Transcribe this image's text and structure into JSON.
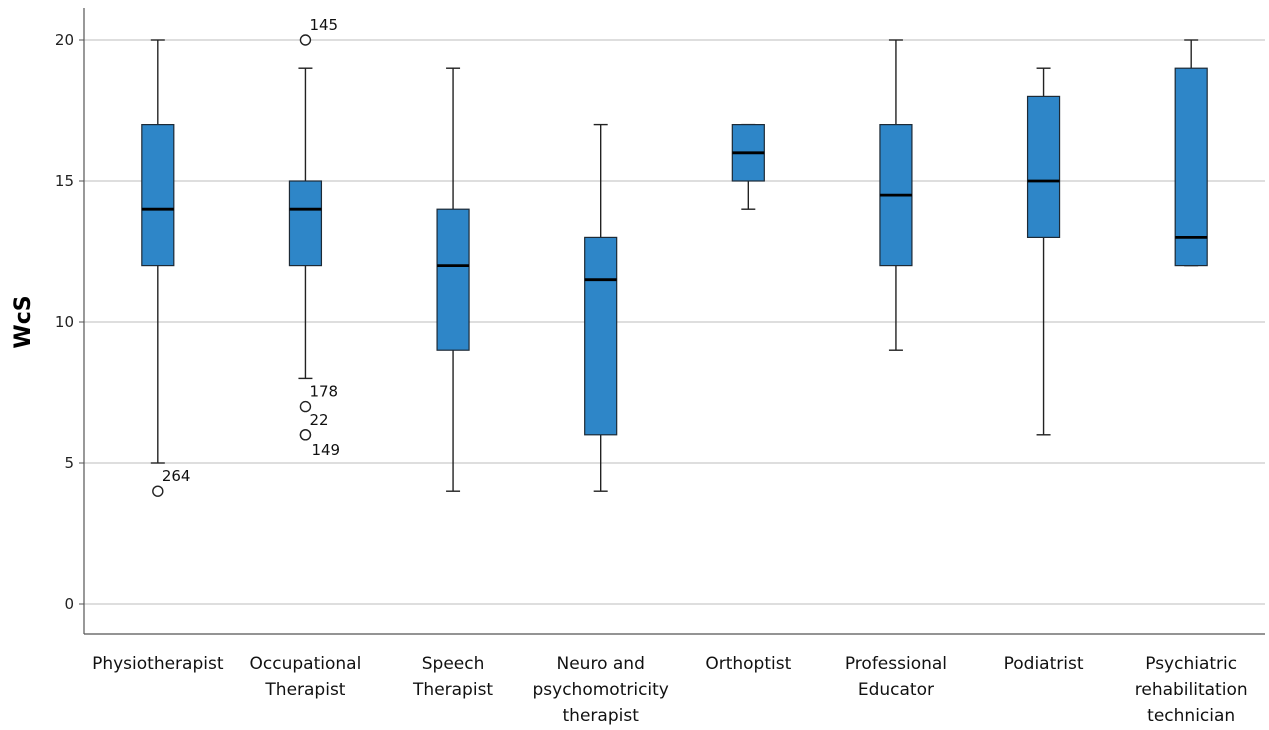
{
  "chart_data": {
    "type": "boxplot",
    "ylabel": "WcS",
    "xlabel": "",
    "ylim": [
      -1,
      21
    ],
    "yticks": [
      0,
      5,
      10,
      15,
      20
    ],
    "grid": true,
    "box_color": "#2E86C8",
    "categories": [
      {
        "lines": [
          "Physiotherapist"
        ],
        "whisker_low": 5,
        "q1": 12,
        "median": 14,
        "q3": 17,
        "whisker_high": 20,
        "outliers": [
          {
            "value": 4,
            "label": "264"
          }
        ]
      },
      {
        "lines": [
          "Occupational",
          "Therapist"
        ],
        "whisker_low": 8,
        "q1": 12,
        "median": 14,
        "q3": 15,
        "whisker_high": 19,
        "outliers": [
          {
            "value": 20,
            "label": "145"
          },
          {
            "value": 7,
            "label": "178"
          },
          {
            "value": 6,
            "label": "22"
          },
          {
            "value": 6,
            "label": "149"
          }
        ]
      },
      {
        "lines": [
          "Speech",
          "Therapist"
        ],
        "whisker_low": 4,
        "q1": 9,
        "median": 12,
        "q3": 14,
        "whisker_high": 19,
        "outliers": []
      },
      {
        "lines": [
          "Neuro and",
          "psychomotricity",
          "therapist"
        ],
        "whisker_low": 4,
        "q1": 6,
        "median": 11.5,
        "q3": 13,
        "whisker_high": 17,
        "outliers": []
      },
      {
        "lines": [
          "Orthoptist"
        ],
        "whisker_low": 14,
        "q1": 15,
        "median": 16,
        "q3": 17,
        "whisker_high": 17,
        "outliers": []
      },
      {
        "lines": [
          "Professional",
          "Educator"
        ],
        "whisker_low": 9,
        "q1": 12,
        "median": 14.5,
        "q3": 17,
        "whisker_high": 20,
        "outliers": []
      },
      {
        "lines": [
          "Podiatrist"
        ],
        "whisker_low": 6,
        "q1": 13,
        "median": 15,
        "q3": 18,
        "whisker_high": 19,
        "outliers": []
      },
      {
        "lines": [
          "Psychiatric",
          "rehabilitation",
          "technician"
        ],
        "whisker_low": 12,
        "q1": 12,
        "median": 13,
        "q3": 19,
        "whisker_high": 20,
        "outliers": []
      }
    ]
  }
}
